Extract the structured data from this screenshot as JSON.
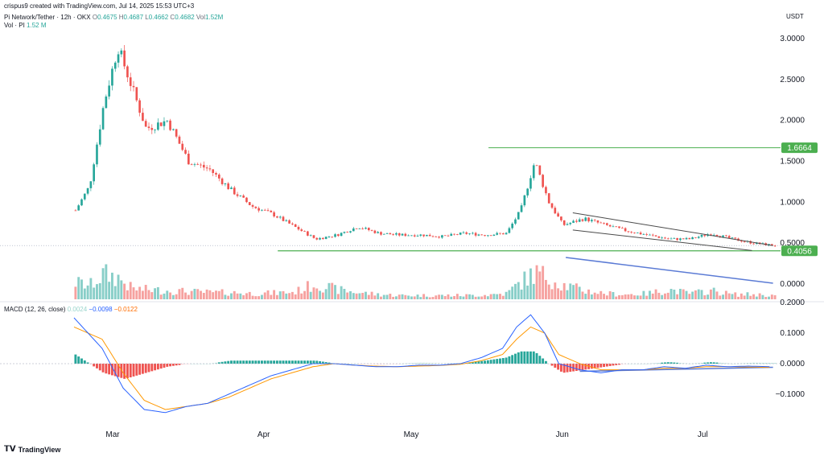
{
  "header": {
    "created": "crispus9 created with TradingView.com, Jul 14, 2025 15:53 UTC+3",
    "symbol": "Pi Network/Tether · 12h · OKX",
    "o_label": "O",
    "o_value": "0.4675",
    "h_label": "H",
    "h_value": "0.4687",
    "l_label": "L",
    "l_value": "0.4662",
    "c_label": "C",
    "c_value": "0.4682",
    "vol_label": "Vol",
    "vol_value": "1.52M",
    "vol_row_label": "Vol · PI",
    "vol_row_value": "1.52 M",
    "currency": "USDT"
  },
  "macd_header": {
    "label": "MACD (12, 26, close)",
    "hist": "0.0024",
    "macd": "−0.0098",
    "signal": "−0.0122"
  },
  "colors": {
    "up": "#26a69a",
    "down": "#ef5350",
    "macd": "#2962ff",
    "signal": "#ff9800",
    "level": "#4caf50",
    "trend": "#4a4a4a",
    "vol_trend": "#5b7bd5"
  },
  "footer": {
    "brand": "TradingView"
  },
  "chart_data": [
    {
      "type": "candlestick",
      "title": "Pi Network/Tether · 12h · OKX",
      "y_unit": "USDT",
      "ylim": [
        -0.2,
        3.2
      ],
      "y_ticks": [
        "3.0000",
        "2.5000",
        "2.0000",
        "1.5000",
        "1.0000",
        "0.5000",
        "0.0000"
      ],
      "x_ticks": [
        "Mar",
        "Apr",
        "May",
        "Jun",
        "Jul"
      ],
      "price_labels": [
        {
          "text": "1.6664",
          "value": 1.6664
        },
        {
          "text": "0.4056",
          "value": 0.4056
        }
      ],
      "horizontal_levels": [
        1.6664,
        0.4056
      ],
      "price_path": [
        [
          0,
          0.9
        ],
        [
          2,
          1.2
        ],
        [
          4,
          2.2
        ],
        [
          6,
          2.9
        ],
        [
          8,
          2.4
        ],
        [
          10,
          1.9
        ],
        [
          13,
          2.0
        ],
        [
          16,
          1.5
        ],
        [
          19,
          1.4
        ],
        [
          22,
          1.15
        ],
        [
          25,
          0.95
        ],
        [
          28,
          0.85
        ],
        [
          31,
          0.7
        ],
        [
          34,
          0.55
        ],
        [
          37,
          0.6
        ],
        [
          40,
          0.7
        ],
        [
          43,
          0.62
        ],
        [
          46,
          0.6
        ],
        [
          49,
          0.6
        ],
        [
          52,
          0.58
        ],
        [
          55,
          0.62
        ],
        [
          58,
          0.6
        ],
        [
          61,
          0.62
        ],
        [
          63,
          0.9
        ],
        [
          65,
          1.5
        ],
        [
          67,
          1.0
        ],
        [
          69,
          0.72
        ],
        [
          72,
          0.8
        ],
        [
          75,
          0.72
        ],
        [
          78,
          0.65
        ],
        [
          81,
          0.6
        ],
        [
          84,
          0.55
        ],
        [
          87,
          0.55
        ],
        [
          90,
          0.62
        ],
        [
          93,
          0.55
        ],
        [
          96,
          0.5
        ],
        [
          99,
          0.47
        ]
      ],
      "volume_profile": [
        [
          0,
          0.35
        ],
        [
          2,
          0.28
        ],
        [
          4,
          0.52
        ],
        [
          6,
          0.45
        ],
        [
          8,
          0.22
        ],
        [
          10,
          0.2
        ],
        [
          13,
          0.18
        ],
        [
          16,
          0.16
        ],
        [
          19,
          0.14
        ],
        [
          22,
          0.14
        ],
        [
          25,
          0.12
        ],
        [
          28,
          0.13
        ],
        [
          31,
          0.15
        ],
        [
          34,
          0.32
        ],
        [
          37,
          0.2
        ],
        [
          40,
          0.14
        ],
        [
          43,
          0.1
        ],
        [
          46,
          0.08
        ],
        [
          49,
          0.08
        ],
        [
          52,
          0.08
        ],
        [
          55,
          0.08
        ],
        [
          58,
          0.09
        ],
        [
          61,
          0.12
        ],
        [
          63,
          0.35
        ],
        [
          65,
          0.55
        ],
        [
          67,
          0.45
        ],
        [
          69,
          0.3
        ],
        [
          72,
          0.18
        ],
        [
          75,
          0.12
        ],
        [
          78,
          0.1
        ],
        [
          81,
          0.12
        ],
        [
          84,
          0.2
        ],
        [
          87,
          0.12
        ],
        [
          90,
          0.18
        ],
        [
          93,
          0.1
        ],
        [
          96,
          0.1
        ],
        [
          99,
          0.08
        ]
      ],
      "series": [
        {
          "name": "Vol · PI"
        }
      ]
    },
    {
      "type": "line",
      "title": "MACD (12, 26, close)",
      "ylim": [
        -0.2,
        0.2
      ],
      "y_ticks": [
        "0.2000",
        "0.1000",
        "0.0000",
        "−0.1000"
      ],
      "x_ticks": [
        "Mar",
        "Apr",
        "May",
        "Jun",
        "Jul"
      ],
      "series": [
        {
          "name": "MACD",
          "values": [
            [
              0,
              0.15
            ],
            [
              4,
              0.05
            ],
            [
              7,
              -0.08
            ],
            [
              10,
              -0.15
            ],
            [
              13,
              -0.16
            ],
            [
              16,
              -0.14
            ],
            [
              19,
              -0.13
            ],
            [
              22,
              -0.1
            ],
            [
              25,
              -0.07
            ],
            [
              28,
              -0.04
            ],
            [
              31,
              -0.02
            ],
            [
              34,
              0.0
            ],
            [
              37,
              0.0
            ],
            [
              40,
              -0.005
            ],
            [
              43,
              -0.01
            ],
            [
              46,
              -0.01
            ],
            [
              49,
              -0.005
            ],
            [
              52,
              -0.005
            ],
            [
              55,
              0.0
            ],
            [
              58,
              0.02
            ],
            [
              61,
              0.05
            ],
            [
              63,
              0.12
            ],
            [
              65,
              0.16
            ],
            [
              67,
              0.1
            ],
            [
              69,
              0.0
            ],
            [
              72,
              -0.02
            ],
            [
              75,
              -0.03
            ],
            [
              78,
              -0.02
            ],
            [
              81,
              -0.02
            ],
            [
              84,
              -0.01
            ],
            [
              87,
              -0.015
            ],
            [
              90,
              -0.005
            ],
            [
              93,
              -0.01
            ],
            [
              96,
              -0.008
            ],
            [
              99,
              -0.0098
            ]
          ]
        },
        {
          "name": "Signal",
          "values": [
            [
              0,
              0.12
            ],
            [
              4,
              0.08
            ],
            [
              7,
              -0.03
            ],
            [
              10,
              -0.12
            ],
            [
              13,
              -0.15
            ],
            [
              16,
              -0.14
            ],
            [
              19,
              -0.13
            ],
            [
              22,
              -0.11
            ],
            [
              25,
              -0.08
            ],
            [
              28,
              -0.05
            ],
            [
              31,
              -0.03
            ],
            [
              34,
              -0.01
            ],
            [
              37,
              0.0
            ],
            [
              40,
              -0.005
            ],
            [
              43,
              -0.008
            ],
            [
              46,
              -0.01
            ],
            [
              49,
              -0.008
            ],
            [
              52,
              -0.006
            ],
            [
              55,
              -0.002
            ],
            [
              58,
              0.01
            ],
            [
              61,
              0.03
            ],
            [
              63,
              0.08
            ],
            [
              65,
              0.12
            ],
            [
              67,
              0.1
            ],
            [
              69,
              0.03
            ],
            [
              72,
              0.0
            ],
            [
              75,
              -0.02
            ],
            [
              78,
              -0.02
            ],
            [
              81,
              -0.02
            ],
            [
              84,
              -0.015
            ],
            [
              87,
              -0.015
            ],
            [
              90,
              -0.01
            ],
            [
              93,
              -0.01
            ],
            [
              96,
              -0.011
            ],
            [
              99,
              -0.0122
            ]
          ]
        }
      ]
    }
  ]
}
